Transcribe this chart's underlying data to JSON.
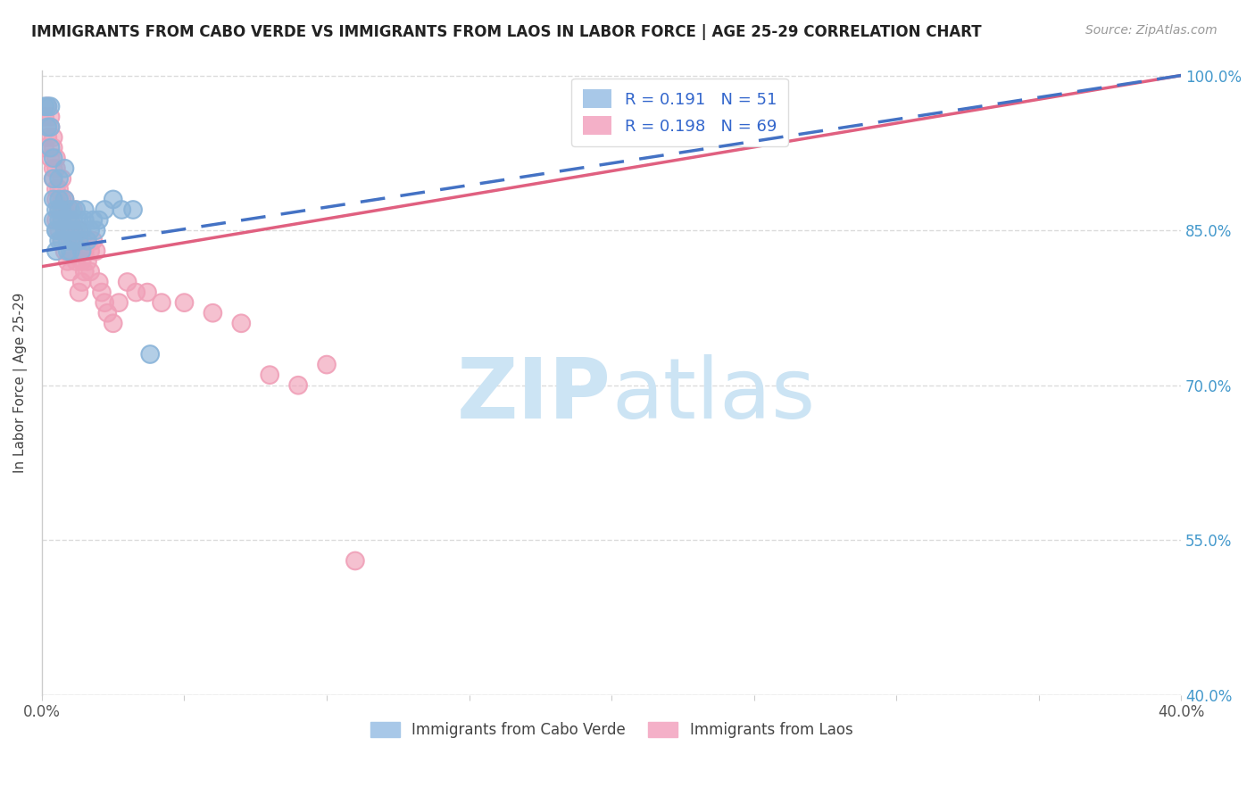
{
  "title": "IMMIGRANTS FROM CABO VERDE VS IMMIGRANTS FROM LAOS IN LABOR FORCE | AGE 25-29 CORRELATION CHART",
  "source": "Source: ZipAtlas.com",
  "ylabel": "In Labor Force | Age 25-29",
  "x_min": 0.0,
  "x_max": 0.4,
  "y_min": 0.4,
  "y_max": 1.005,
  "cabo_verde_color": "#8ab4d9",
  "laos_color": "#f0a0b8",
  "cabo_verde_line_color": "#4472c4",
  "laos_line_color": "#e06080",
  "cabo_verde_R": 0.191,
  "cabo_verde_N": 51,
  "laos_R": 0.198,
  "laos_N": 69,
  "cabo_verde_x": [
    0.001,
    0.002,
    0.002,
    0.003,
    0.003,
    0.003,
    0.004,
    0.004,
    0.004,
    0.004,
    0.005,
    0.005,
    0.005,
    0.005,
    0.006,
    0.006,
    0.006,
    0.006,
    0.006,
    0.007,
    0.007,
    0.007,
    0.008,
    0.008,
    0.008,
    0.009,
    0.009,
    0.009,
    0.01,
    0.01,
    0.01,
    0.011,
    0.011,
    0.012,
    0.012,
    0.013,
    0.013,
    0.014,
    0.014,
    0.015,
    0.015,
    0.016,
    0.017,
    0.018,
    0.019,
    0.02,
    0.022,
    0.025,
    0.028,
    0.032,
    0.038
  ],
  "cabo_verde_y": [
    0.97,
    0.97,
    0.95,
    0.93,
    0.97,
    0.95,
    0.92,
    0.9,
    0.88,
    0.86,
    0.87,
    0.85,
    0.83,
    0.85,
    0.9,
    0.88,
    0.86,
    0.84,
    0.87,
    0.86,
    0.84,
    0.87,
    0.91,
    0.88,
    0.85,
    0.86,
    0.84,
    0.83,
    0.87,
    0.85,
    0.83,
    0.86,
    0.84,
    0.87,
    0.85,
    0.86,
    0.84,
    0.85,
    0.83,
    0.87,
    0.86,
    0.84,
    0.85,
    0.86,
    0.85,
    0.86,
    0.87,
    0.88,
    0.87,
    0.87,
    0.73
  ],
  "laos_x": [
    0.001,
    0.001,
    0.002,
    0.002,
    0.003,
    0.003,
    0.003,
    0.004,
    0.004,
    0.004,
    0.004,
    0.005,
    0.005,
    0.005,
    0.005,
    0.005,
    0.006,
    0.006,
    0.006,
    0.007,
    0.007,
    0.007,
    0.007,
    0.008,
    0.008,
    0.008,
    0.008,
    0.009,
    0.009,
    0.009,
    0.01,
    0.01,
    0.01,
    0.011,
    0.011,
    0.011,
    0.012,
    0.012,
    0.013,
    0.013,
    0.013,
    0.014,
    0.014,
    0.014,
    0.015,
    0.015,
    0.016,
    0.016,
    0.017,
    0.017,
    0.018,
    0.019,
    0.02,
    0.021,
    0.022,
    0.023,
    0.025,
    0.027,
    0.03,
    0.033,
    0.037,
    0.042,
    0.05,
    0.06,
    0.07,
    0.08,
    0.09,
    0.1,
    0.11
  ],
  "laos_y": [
    0.93,
    0.96,
    0.94,
    0.97,
    0.95,
    0.92,
    0.96,
    0.94,
    0.91,
    0.93,
    0.9,
    0.88,
    0.91,
    0.89,
    0.86,
    0.92,
    0.89,
    0.87,
    0.85,
    0.88,
    0.86,
    0.84,
    0.9,
    0.87,
    0.85,
    0.88,
    0.83,
    0.87,
    0.85,
    0.82,
    0.86,
    0.84,
    0.81,
    0.85,
    0.83,
    0.87,
    0.84,
    0.82,
    0.85,
    0.83,
    0.79,
    0.84,
    0.82,
    0.8,
    0.83,
    0.81,
    0.84,
    0.82,
    0.83,
    0.81,
    0.84,
    0.83,
    0.8,
    0.79,
    0.78,
    0.77,
    0.76,
    0.78,
    0.8,
    0.79,
    0.79,
    0.78,
    0.78,
    0.77,
    0.76,
    0.71,
    0.7,
    0.72,
    0.53
  ],
  "background_color": "#ffffff",
  "grid_color": "#cccccc",
  "title_color": "#222222",
  "watermark_color": "#cce4f4",
  "legend_color": "#3366cc",
  "y_ticks": [
    0.4,
    0.55,
    0.7,
    0.85,
    1.0
  ],
  "y_tick_labels": [
    "40.0%",
    "55.0%",
    "70.0%",
    "85.0%",
    "100.0%"
  ]
}
